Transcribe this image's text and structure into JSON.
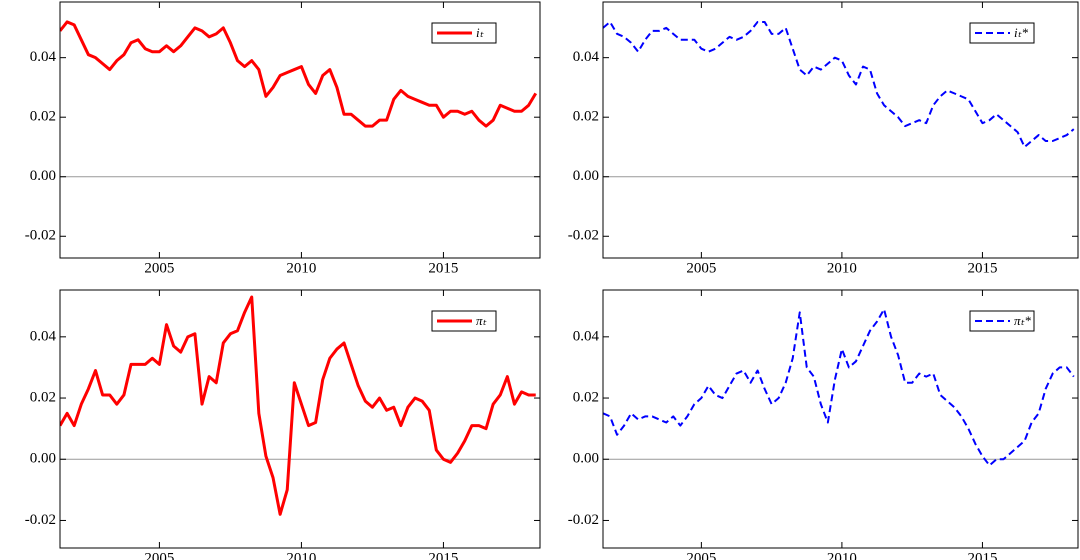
{
  "chart_data": [
    {
      "type": "line",
      "xlim": [
        2001.5,
        2018.4
      ],
      "xticks": [
        2005,
        2010,
        2015
      ],
      "ylim": [
        -0.0273,
        0.0587
      ],
      "yticks": [
        -0.02,
        {
          "value": 0,
          "label": "0.00"
        },
        0.02,
        0.04
      ],
      "refline": 0,
      "legend": "upper right",
      "x": [
        2001.5,
        2001.75,
        2002,
        2002.25,
        2002.5,
        2002.75,
        2003,
        2003.25,
        2003.5,
        2003.75,
        2004,
        2004.25,
        2004.5,
        2004.75,
        2005,
        2005.25,
        2005.5,
        2005.75,
        2006,
        2006.25,
        2006.5,
        2006.75,
        2007,
        2007.25,
        2007.5,
        2007.75,
        2008,
        2008.25,
        2008.5,
        2008.75,
        2009,
        2009.25,
        2009.5,
        2009.75,
        2010,
        2010.25,
        2010.5,
        2010.75,
        2011,
        2011.25,
        2011.5,
        2011.75,
        2012,
        2012.25,
        2012.5,
        2012.75,
        2013,
        2013.25,
        2013.5,
        2013.75,
        2014,
        2014.25,
        2014.5,
        2014.75,
        2015,
        2015.25,
        2015.5,
        2015.75,
        2016,
        2016.25,
        2016.5,
        2016.75,
        2017,
        2017.25,
        2017.5,
        2017.75,
        2018,
        2018.25
      ],
      "series": [
        {
          "name": "iₜ",
          "color": "#ff0000",
          "dashed": false,
          "values": [
            0.049,
            0.052,
            0.051,
            0.046,
            0.041,
            0.04,
            0.038,
            0.036,
            0.039,
            0.041,
            0.045,
            0.046,
            0.043,
            0.042,
            0.042,
            0.044,
            0.042,
            0.044,
            0.047,
            0.05,
            0.049,
            0.047,
            0.048,
            0.05,
            0.045,
            0.039,
            0.037,
            0.039,
            0.036,
            0.027,
            0.03,
            0.034,
            0.035,
            0.036,
            0.037,
            0.031,
            0.028,
            0.034,
            0.036,
            0.03,
            0.021,
            0.021,
            0.019,
            0.017,
            0.017,
            0.019,
            0.019,
            0.026,
            0.029,
            0.027,
            0.026,
            0.025,
            0.024,
            0.024,
            0.02,
            0.022,
            0.022,
            0.021,
            0.022,
            0.019,
            0.017,
            0.019,
            0.024,
            0.023,
            0.022,
            0.022,
            0.024,
            0.028
          ]
        }
      ]
    },
    {
      "type": "line",
      "xlim": [
        2001.5,
        2018.4
      ],
      "xticks": [
        2005,
        2010,
        2015
      ],
      "ylim": [
        -0.0273,
        0.0587
      ],
      "yticks": [
        -0.02,
        {
          "value": 0,
          "label": "0.00"
        },
        0.02,
        0.04
      ],
      "refline": 0,
      "legend": "upper right",
      "x": [
        2001.5,
        2001.75,
        2002,
        2002.25,
        2002.5,
        2002.75,
        2003,
        2003.25,
        2003.5,
        2003.75,
        2004,
        2004.25,
        2004.5,
        2004.75,
        2005,
        2005.25,
        2005.5,
        2005.75,
        2006,
        2006.25,
        2006.5,
        2006.75,
        2007,
        2007.25,
        2007.5,
        2007.75,
        2008,
        2008.25,
        2008.5,
        2008.75,
        2009,
        2009.25,
        2009.5,
        2009.75,
        2010,
        2010.25,
        2010.5,
        2010.75,
        2011,
        2011.25,
        2011.5,
        2011.75,
        2012,
        2012.25,
        2012.5,
        2012.75,
        2013,
        2013.25,
        2013.5,
        2013.75,
        2014,
        2014.25,
        2014.5,
        2014.75,
        2015,
        2015.25,
        2015.5,
        2015.75,
        2016,
        2016.25,
        2016.5,
        2016.75,
        2017,
        2017.25,
        2017.5,
        2017.75,
        2018,
        2018.25
      ],
      "series": [
        {
          "name": "iₜ*",
          "color": "#0000ff",
          "dashed": true,
          "values": [
            0.05,
            0.052,
            0.048,
            0.047,
            0.045,
            0.042,
            0.046,
            0.049,
            0.049,
            0.05,
            0.048,
            0.046,
            0.046,
            0.046,
            0.043,
            0.042,
            0.043,
            0.045,
            0.047,
            0.046,
            0.047,
            0.049,
            0.052,
            0.052,
            0.048,
            0.048,
            0.05,
            0.043,
            0.036,
            0.034,
            0.037,
            0.036,
            0.038,
            0.04,
            0.039,
            0.034,
            0.031,
            0.037,
            0.036,
            0.028,
            0.024,
            0.022,
            0.02,
            0.017,
            0.018,
            0.019,
            0.018,
            0.024,
            0.027,
            0.029,
            0.028,
            0.027,
            0.026,
            0.022,
            0.018,
            0.019,
            0.021,
            0.019,
            0.017,
            0.015,
            0.01,
            0.012,
            0.014,
            0.012,
            0.012,
            0.013,
            0.014,
            0.016
          ]
        }
      ]
    },
    {
      "type": "line",
      "xlim": [
        2001.5,
        2018.4
      ],
      "xticks": [
        2005,
        2010,
        2015
      ],
      "ylim": [
        -0.029,
        0.0553
      ],
      "yticks": [
        -0.02,
        {
          "value": 0,
          "label": "0.00"
        },
        0.02,
        0.04
      ],
      "refline": 0,
      "legend": "upper right",
      "x": [
        2001.5,
        2001.75,
        2002,
        2002.25,
        2002.5,
        2002.75,
        2003,
        2003.25,
        2003.5,
        2003.75,
        2004,
        2004.25,
        2004.5,
        2004.75,
        2005,
        2005.25,
        2005.5,
        2005.75,
        2006,
        2006.25,
        2006.5,
        2006.75,
        2007,
        2007.25,
        2007.5,
        2007.75,
        2008,
        2008.25,
        2008.5,
        2008.75,
        2009,
        2009.25,
        2009.5,
        2009.75,
        2010,
        2010.25,
        2010.5,
        2010.75,
        2011,
        2011.25,
        2011.5,
        2011.75,
        2012,
        2012.25,
        2012.5,
        2012.75,
        2013,
        2013.25,
        2013.5,
        2013.75,
        2014,
        2014.25,
        2014.5,
        2014.75,
        2015,
        2015.25,
        2015.5,
        2015.75,
        2016,
        2016.25,
        2016.5,
        2016.75,
        2017,
        2017.25,
        2017.5,
        2017.75,
        2018,
        2018.25
      ],
      "series": [
        {
          "name": "πₜ",
          "color": "#ff0000",
          "dashed": false,
          "values": [
            0.011,
            0.015,
            0.011,
            0.018,
            0.023,
            0.029,
            0.021,
            0.021,
            0.018,
            0.021,
            0.031,
            0.031,
            0.031,
            0.033,
            0.031,
            0.044,
            0.037,
            0.035,
            0.04,
            0.041,
            0.018,
            0.027,
            0.025,
            0.038,
            0.041,
            0.042,
            0.048,
            0.053,
            0.015,
            0.001,
            -0.006,
            -0.018,
            -0.01,
            0.025,
            0.018,
            0.011,
            0.012,
            0.026,
            0.033,
            0.036,
            0.038,
            0.031,
            0.024,
            0.019,
            0.017,
            0.02,
            0.016,
            0.017,
            0.011,
            0.017,
            0.02,
            0.019,
            0.016,
            0.003,
            0.0,
            -0.001,
            0.002,
            0.006,
            0.011,
            0.011,
            0.01,
            0.018,
            0.021,
            0.027,
            0.018,
            0.022,
            0.021,
            0.021
          ]
        }
      ]
    },
    {
      "type": "line",
      "xlim": [
        2001.5,
        2018.4
      ],
      "xticks": [
        2005,
        2010,
        2015
      ],
      "ylim": [
        -0.029,
        0.0553
      ],
      "yticks": [
        -0.02,
        {
          "value": 0,
          "label": "0.00"
        },
        0.02,
        0.04
      ],
      "refline": 0,
      "legend": "upper right",
      "x": [
        2001.5,
        2001.75,
        2002,
        2002.25,
        2002.5,
        2002.75,
        2003,
        2003.25,
        2003.5,
        2003.75,
        2004,
        2004.25,
        2004.5,
        2004.75,
        2005,
        2005.25,
        2005.5,
        2005.75,
        2006,
        2006.25,
        2006.5,
        2006.75,
        2007,
        2007.25,
        2007.5,
        2007.75,
        2008,
        2008.25,
        2008.5,
        2008.75,
        2009,
        2009.25,
        2009.5,
        2009.75,
        2010,
        2010.25,
        2010.5,
        2010.75,
        2011,
        2011.25,
        2011.5,
        2011.75,
        2012,
        2012.25,
        2012.5,
        2012.75,
        2013,
        2013.25,
        2013.5,
        2013.75,
        2014,
        2014.25,
        2014.5,
        2014.75,
        2015,
        2015.25,
        2015.5,
        2015.75,
        2016,
        2016.25,
        2016.5,
        2016.75,
        2017,
        2017.25,
        2017.5,
        2017.75,
        2018,
        2018.25
      ],
      "series": [
        {
          "name": "πₜ*",
          "color": "#0000ff",
          "dashed": true,
          "values": [
            0.015,
            0.014,
            0.008,
            0.011,
            0.015,
            0.013,
            0.014,
            0.014,
            0.013,
            0.012,
            0.014,
            0.011,
            0.014,
            0.018,
            0.02,
            0.024,
            0.021,
            0.02,
            0.024,
            0.028,
            0.029,
            0.025,
            0.029,
            0.023,
            0.018,
            0.02,
            0.025,
            0.033,
            0.048,
            0.03,
            0.027,
            0.018,
            0.012,
            0.026,
            0.036,
            0.03,
            0.032,
            0.037,
            0.042,
            0.045,
            0.049,
            0.04,
            0.034,
            0.025,
            0.025,
            0.028,
            0.027,
            0.028,
            0.021,
            0.019,
            0.017,
            0.014,
            0.01,
            0.005,
            0.001,
            -0.002,
            0.0,
            0.0,
            0.002,
            0.004,
            0.006,
            0.012,
            0.015,
            0.023,
            0.028,
            0.03,
            0.03,
            0.027
          ]
        }
      ]
    }
  ]
}
